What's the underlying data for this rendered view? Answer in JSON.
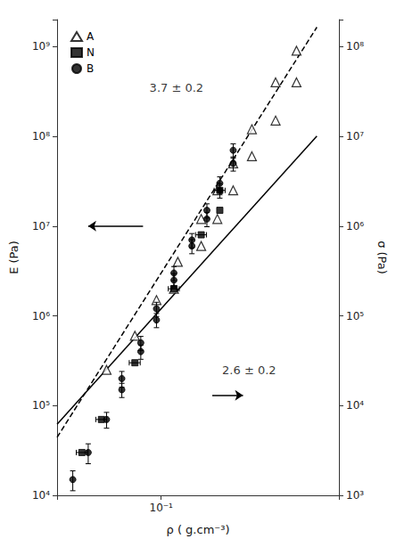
{
  "chart_data": {
    "type": "scatter",
    "log": true,
    "grid": false,
    "legend": "upper left",
    "xlabel": "ρ ( g.cm⁻³)",
    "ylabel": "E (Pa)",
    "y2label": "σ (Pa)",
    "xlim": [
      0.032,
      0.7
    ],
    "ylim": [
      10000.0,
      2000000000.0
    ],
    "y2lim": [
      1000.0,
      200000000.0
    ],
    "xticks": [
      {
        "value": 0.1,
        "label": "10⁻¹"
      }
    ],
    "yticks": [
      {
        "value": 10000,
        "label": "10⁴"
      },
      {
        "value": 100000,
        "label": "10⁵"
      },
      {
        "value": 1000000,
        "label": "10⁶"
      },
      {
        "value": 10000000,
        "label": "10⁷"
      },
      {
        "value": 100000000,
        "label": "10⁸"
      },
      {
        "value": 1000000000,
        "label": "10⁹"
      }
    ],
    "y2ticks": [
      {
        "value": 1000,
        "label": "10³"
      },
      {
        "value": 10000,
        "label": "10⁴"
      },
      {
        "value": 100000,
        "label": "10⁵"
      },
      {
        "value": 1000000,
        "label": "10⁶"
      },
      {
        "value": 10000000,
        "label": "10⁷"
      },
      {
        "value": 100000000,
        "label": "10⁸"
      }
    ],
    "series": [
      {
        "name": "A",
        "marker": "triangle-open",
        "color": "black",
        "x": [
          0.055,
          0.075,
          0.095,
          0.12,
          0.155,
          0.185,
          0.22,
          0.27,
          0.35,
          0.44
        ],
        "values": [
          250000.0,
          600000.0,
          1500000.0,
          4000000.0,
          12000000.0,
          25000000.0,
          50000000.0,
          120000000.0,
          400000000.0,
          900000000.0
        ]
      },
      {
        "name": "N",
        "marker": "square",
        "color": "black",
        "x": [
          0.042,
          0.052,
          0.075,
          0.115,
          0.155,
          0.19
        ],
        "values": [
          30000.0,
          70000.0,
          300000.0,
          2000000.0,
          8000000.0,
          25000000.0
        ],
        "xerr": [
          0.00252,
          0.00312,
          0.0045,
          0.0069,
          0.0093,
          0.0114
        ]
      },
      {
        "name": "B",
        "marker": "circle",
        "color": "black",
        "x": [
          0.038,
          0.045,
          0.055,
          0.065,
          0.08,
          0.095,
          0.115,
          0.14,
          0.165,
          0.19,
          0.22
        ],
        "values": [
          15000.0,
          30000.0,
          70000.0,
          150000.0,
          400000.0,
          900000.0,
          2500000.0,
          6000000.0,
          12000000.0,
          25000000.0,
          50000000.0
        ],
        "yerr": [
          3750,
          7500,
          14000,
          27000,
          72000,
          162000,
          450000,
          1080000,
          2160000,
          4500000,
          9000000
        ]
      },
      {
        "axis": "y2",
        "marker": "triangle-open",
        "color": "black",
        "x": [
          0.115,
          0.155,
          0.185,
          0.22,
          0.27,
          0.35,
          0.44
        ],
        "values": [
          200000.0,
          600000.0,
          1200000.0,
          2500000.0,
          6000000.0,
          15000000.0,
          40000000.0
        ]
      },
      {
        "axis": "y2",
        "marker": "square",
        "color": "black",
        "x": [
          0.115,
          0.19
        ],
        "values": [
          200000.0,
          1500000.0
        ]
      },
      {
        "axis": "y2",
        "marker": "circle",
        "color": "black",
        "x": [
          0.065,
          0.08,
          0.095,
          0.115,
          0.14,
          0.165,
          0.19,
          0.22
        ],
        "values": [
          20000.0,
          50000.0,
          120000.0,
          300000.0,
          700000.0,
          1500000.0,
          3000000.0,
          7000000.0
        ],
        "yerr": [
          4000,
          9000,
          21600,
          54000,
          126000,
          270000,
          540000,
          1260000
        ]
      },
      {
        "type": "line",
        "line_style": "dashed",
        "color": "black",
        "x": [
          0.032,
          0.55
        ],
        "values": [
          44277,
          1646200000.0
        ]
      },
      {
        "type": "line",
        "axis": "y2",
        "line_style": "solid",
        "color": "black",
        "x": [
          0.032,
          0.55
        ],
        "values": [
          6202.6,
          10095000.0
        ]
      }
    ],
    "annotations": [
      {
        "text": "3.7 ± 0.2",
        "x": 0.088,
        "y": 350000000.0
      },
      {
        "text": "2.6 ± 0.2",
        "x": 0.195,
        "y": 250000.0
      }
    ],
    "arrows": [
      {
        "x": [
          0.082,
          0.045
        ],
        "y": [
          10000000.0,
          10000000.0
        ]
      },
      {
        "x": [
          0.175,
          0.245
        ],
        "y": [
          130000.0,
          130000.0
        ]
      }
    ]
  }
}
